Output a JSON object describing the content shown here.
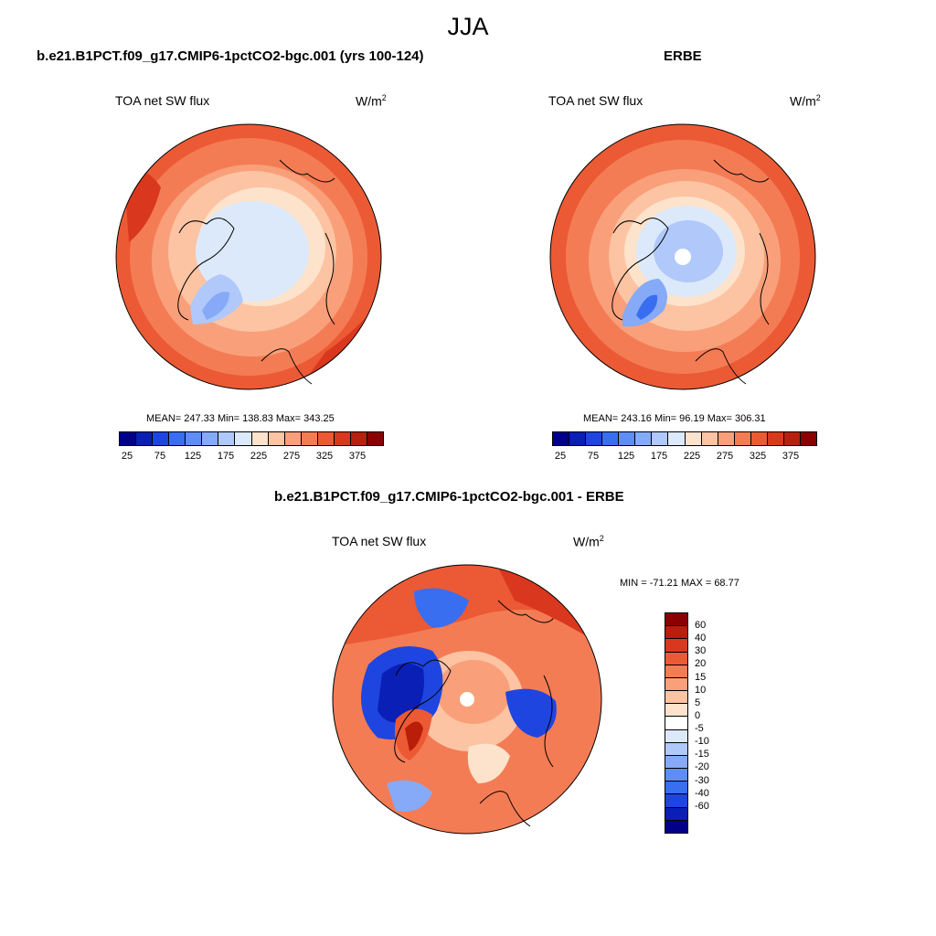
{
  "season": "JJA",
  "panel_model": {
    "title": "b.e21.B1PCT.f09_g17.CMIP6-1pctCO2-bgc.001 (yrs 100-124)",
    "variable": "TOA net SW flux",
    "unit_base": "W/m",
    "unit_exp": "2",
    "stats": "MEAN= 247.33  Min= 138.83  Max= 343.25"
  },
  "panel_obs": {
    "title": "ERBE",
    "variable": "TOA net SW flux",
    "unit_base": "W/m",
    "unit_exp": "2",
    "stats": "MEAN= 243.16  Min=  96.19  Max= 306.31"
  },
  "panel_diff": {
    "title": "b.e21.B1PCT.f09_g17.CMIP6-1pctCO2-bgc.001 - ERBE",
    "variable": "TOA net SW flux",
    "unit_base": "W/m",
    "unit_exp": "2",
    "stats": "MIN = -71.21 MAX =  68.77"
  },
  "abs_colorbar": {
    "colors": [
      "#00008b",
      "#0a1fb5",
      "#1f45e0",
      "#3a6ef0",
      "#5e8df5",
      "#86aaf7",
      "#b0c8fa",
      "#dce9fb",
      "#fde3cc",
      "#fcc4a3",
      "#f9a07a",
      "#f47c55",
      "#eb5a35",
      "#d9381e",
      "#b8200e",
      "#8b0000"
    ],
    "tick_labels": [
      "25",
      "75",
      "125",
      "175",
      "225",
      "275",
      "325",
      "375"
    ]
  },
  "diff_colorbar": {
    "colors": [
      "#8b0000",
      "#b81e08",
      "#d9381e",
      "#eb5a35",
      "#f47c55",
      "#f9a07a",
      "#fcc4a3",
      "#fde3cc",
      "#ffffff",
      "#dce9fb",
      "#b0c8fa",
      "#86aaf7",
      "#5e8df5",
      "#3a6ef0",
      "#1f45e0",
      "#0a1fb5",
      "#00008b"
    ],
    "tick_labels": [
      "60",
      "40",
      "30",
      "20",
      "15",
      "10",
      "5",
      "0",
      "-5",
      "-10",
      "-15",
      "-20",
      "-30",
      "-40",
      "-60"
    ]
  }
}
